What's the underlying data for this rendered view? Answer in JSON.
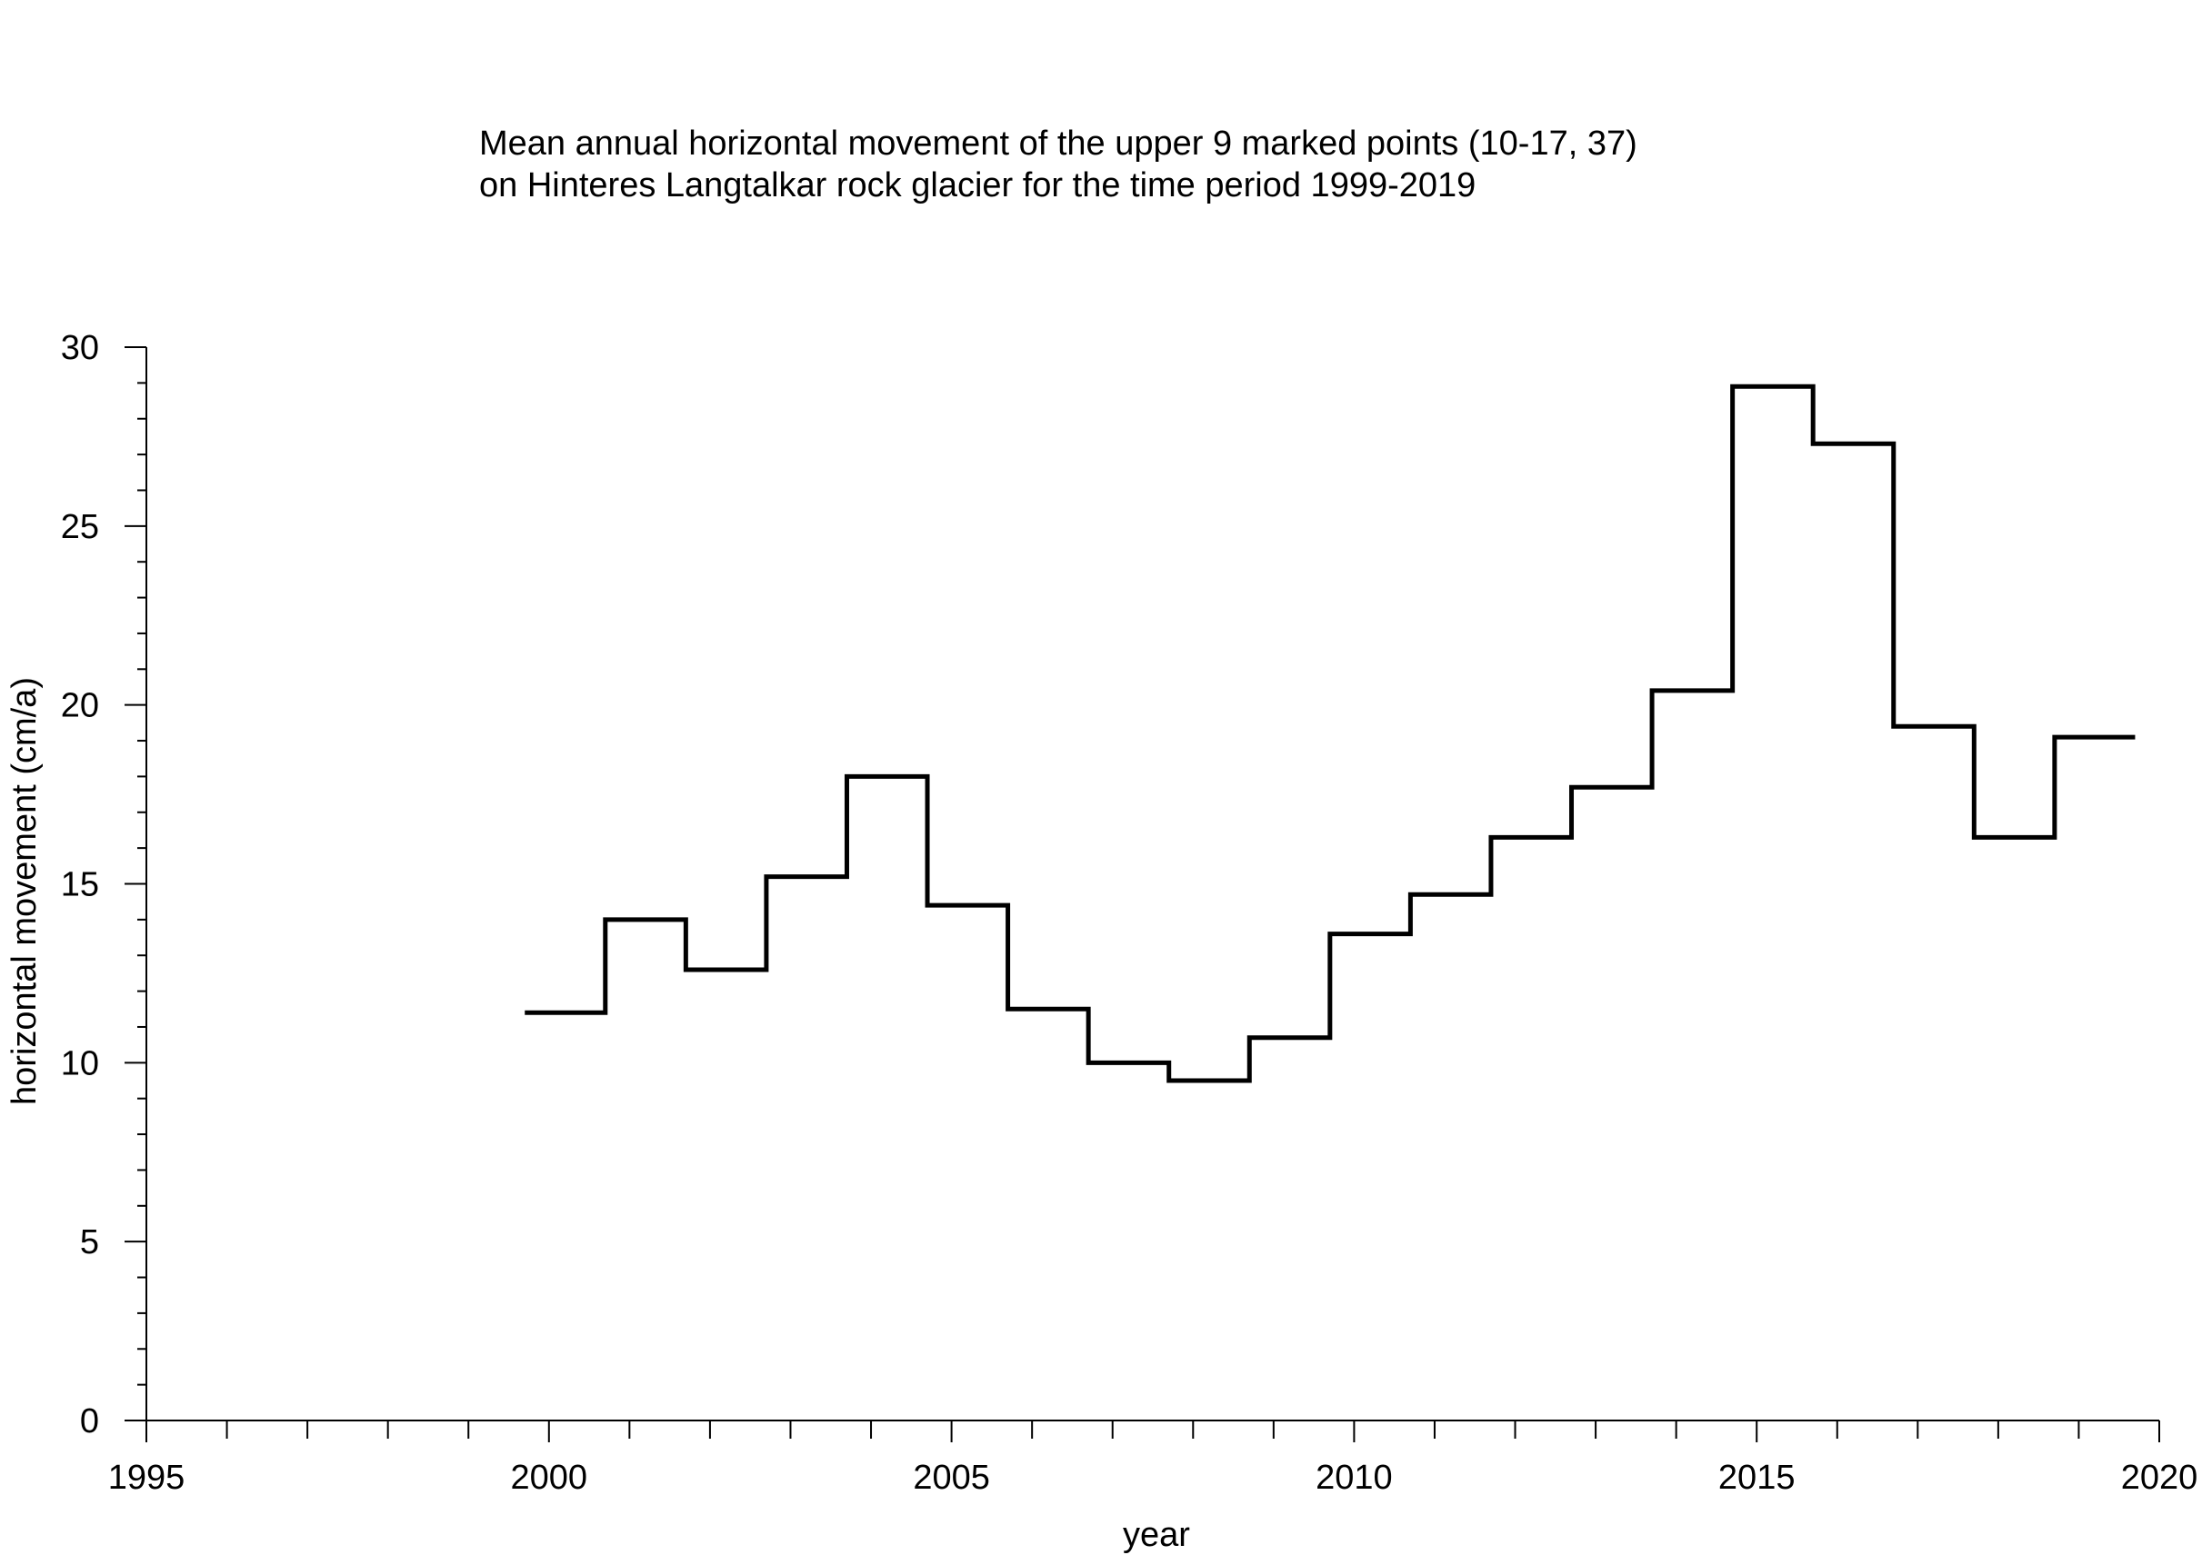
{
  "chart_data": {
    "type": "line",
    "step": true,
    "title_lines": [
      "Mean annual horizontal movement of the upper 9 marked points (10-17, 37)",
      "on Hinteres Langtalkar rock glacier for the time period 1999-2019"
    ],
    "xlabel": "year",
    "ylabel": "horizontal movement (cm/a)",
    "xlim": [
      1995,
      2020
    ],
    "ylim": [
      0,
      30
    ],
    "x_ticks": [
      1995,
      2000,
      2005,
      2010,
      2015,
      2020
    ],
    "y_ticks": [
      0,
      5,
      10,
      15,
      20,
      25,
      30
    ],
    "x_minor_step": 1,
    "y_minor_step": 1,
    "grid": false,
    "series": [
      {
        "segments": [
          {
            "x_start": 1999.7,
            "x_end": 2000.7,
            "y": 11.4
          },
          {
            "x_start": 2000.7,
            "x_end": 2001.7,
            "y": 14.0
          },
          {
            "x_start": 2001.7,
            "x_end": 2002.7,
            "y": 12.6
          },
          {
            "x_start": 2002.7,
            "x_end": 2003.7,
            "y": 15.2
          },
          {
            "x_start": 2003.7,
            "x_end": 2004.7,
            "y": 18.0
          },
          {
            "x_start": 2004.7,
            "x_end": 2005.7,
            "y": 14.4
          },
          {
            "x_start": 2005.7,
            "x_end": 2006.7,
            "y": 11.5
          },
          {
            "x_start": 2006.7,
            "x_end": 2007.7,
            "y": 10.0
          },
          {
            "x_start": 2007.7,
            "x_end": 2008.7,
            "y": 9.5
          },
          {
            "x_start": 2008.7,
            "x_end": 2009.7,
            "y": 10.7
          },
          {
            "x_start": 2009.7,
            "x_end": 2010.7,
            "y": 13.6
          },
          {
            "x_start": 2010.7,
            "x_end": 2011.7,
            "y": 14.7
          },
          {
            "x_start": 2011.7,
            "x_end": 2012.7,
            "y": 16.3
          },
          {
            "x_start": 2012.7,
            "x_end": 2013.7,
            "y": 17.7
          },
          {
            "x_start": 2013.7,
            "x_end": 2014.7,
            "y": 20.4
          },
          {
            "x_start": 2014.7,
            "x_end": 2015.7,
            "y": 28.9
          },
          {
            "x_start": 2015.7,
            "x_end": 2016.7,
            "y": 27.3
          },
          {
            "x_start": 2016.7,
            "x_end": 2017.7,
            "y": 19.4
          },
          {
            "x_start": 2017.7,
            "x_end": 2018.7,
            "y": 16.3
          },
          {
            "x_start": 2018.7,
            "x_end": 2019.7,
            "y": 19.1
          }
        ],
        "color": "#000000"
      }
    ]
  }
}
